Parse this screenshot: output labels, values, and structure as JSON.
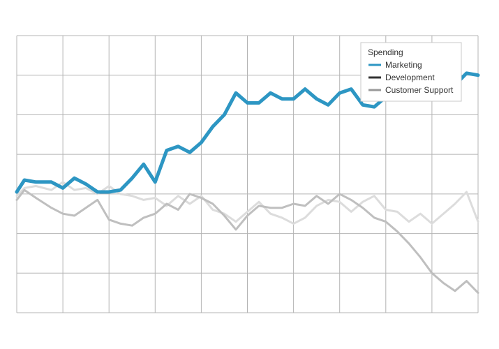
{
  "chart_data": {
    "type": "line",
    "title": "",
    "xlabel": "",
    "ylabel": "",
    "x_range": [
      0,
      240
    ],
    "ylim": [
      0,
      7
    ],
    "grid": true,
    "legend": {
      "title": "Spending",
      "placement": "top-right"
    },
    "series": [
      {
        "name": "Marketing",
        "color": "#2d96c3",
        "x": [
          0,
          4,
          10,
          18,
          24,
          30,
          36,
          42,
          48,
          54,
          60,
          66,
          72,
          78,
          84,
          90,
          96,
          102,
          108,
          114,
          120,
          126,
          132,
          138,
          144,
          150,
          156,
          162,
          168,
          174,
          180,
          186,
          192,
          198,
          204,
          210,
          216,
          222,
          228,
          234,
          240
        ],
        "values": [
          3.05,
          3.35,
          3.3,
          3.3,
          3.15,
          3.4,
          3.25,
          3.05,
          3.05,
          3.1,
          3.4,
          3.75,
          3.3,
          4.1,
          4.2,
          4.05,
          4.3,
          4.7,
          5.0,
          5.55,
          5.3,
          5.3,
          5.55,
          5.4,
          5.4,
          5.65,
          5.4,
          5.25,
          5.55,
          5.65,
          5.25,
          5.2,
          5.45,
          5.55,
          5.45,
          5.6,
          5.85,
          5.6,
          5.75,
          6.05,
          6.0
        ]
      },
      {
        "name": "Development",
        "color": "#bfbfbf",
        "x": [
          0,
          4,
          10,
          18,
          24,
          30,
          36,
          42,
          48,
          54,
          60,
          66,
          72,
          78,
          84,
          90,
          96,
          102,
          108,
          114,
          120,
          126,
          132,
          138,
          144,
          150,
          156,
          162,
          168,
          174,
          180,
          186,
          192,
          198,
          204,
          210,
          216,
          222,
          228,
          234,
          240
        ],
        "values": [
          2.85,
          3.1,
          2.9,
          2.65,
          2.5,
          2.45,
          2.65,
          2.85,
          2.35,
          2.25,
          2.2,
          2.4,
          2.5,
          2.75,
          2.6,
          3.0,
          2.9,
          2.75,
          2.45,
          2.1,
          2.45,
          2.7,
          2.65,
          2.65,
          2.75,
          2.7,
          2.95,
          2.75,
          3.0,
          2.85,
          2.65,
          2.4,
          2.3,
          2.05,
          1.75,
          1.4,
          1.0,
          0.75,
          0.55,
          0.8,
          0.5
        ]
      },
      {
        "name": "Customer Support",
        "color": "#dcdcdc",
        "x": [
          0,
          4,
          10,
          18,
          24,
          30,
          36,
          42,
          48,
          54,
          60,
          66,
          72,
          78,
          84,
          90,
          96,
          102,
          108,
          114,
          120,
          126,
          132,
          138,
          144,
          150,
          156,
          162,
          168,
          174,
          180,
          186,
          192,
          198,
          204,
          210,
          216,
          222,
          228,
          234,
          240
        ],
        "values": [
          2.95,
          3.15,
          3.2,
          3.1,
          3.3,
          3.1,
          3.15,
          3.0,
          3.2,
          3.0,
          2.95,
          2.85,
          2.9,
          2.7,
          2.95,
          2.75,
          2.95,
          2.6,
          2.5,
          2.3,
          2.55,
          2.8,
          2.5,
          2.4,
          2.25,
          2.4,
          2.7,
          2.85,
          2.8,
          2.55,
          2.8,
          2.95,
          2.6,
          2.55,
          2.3,
          2.5,
          2.25,
          2.5,
          2.75,
          3.05,
          2.3
        ]
      }
    ]
  }
}
